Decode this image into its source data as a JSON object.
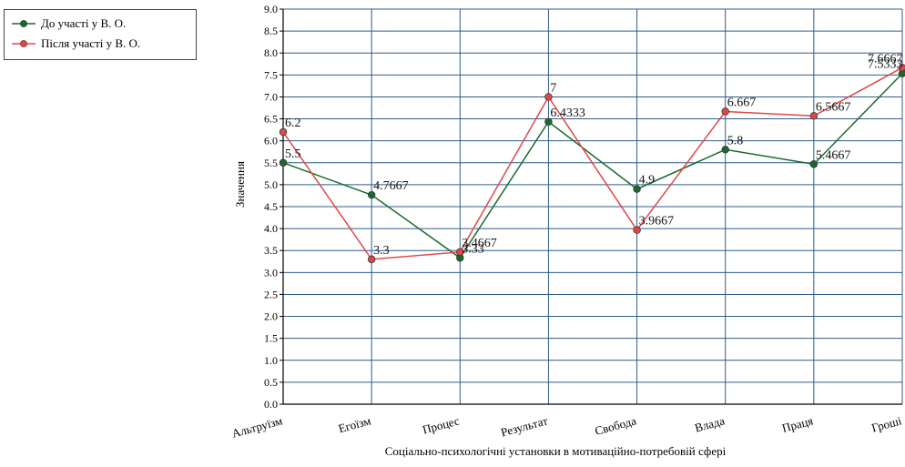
{
  "chart_data": {
    "type": "line",
    "categories": [
      "Альтруїзм",
      "Егоїзм",
      "Процес",
      "Результат",
      "Свобода",
      "Влада",
      "Праця",
      "Гроші"
    ],
    "series": [
      {
        "name": "До участі у В. О.",
        "color": "#1a6b2a",
        "values": [
          5.5,
          4.7667,
          3.3333,
          6.4333,
          4.9,
          5.8,
          5.4667,
          7.5333
        ],
        "labels": [
          "5.5",
          "4.7667",
          "3.33",
          "6.4333",
          "4.9",
          "5.8",
          "5.4667",
          "7.5333"
        ]
      },
      {
        "name": "Після участі у В. О.",
        "color": "#e04848",
        "values": [
          6.2,
          3.3,
          3.4667,
          7.0,
          3.9667,
          6.667,
          6.5667,
          7.6667
        ],
        "labels": [
          "6.2",
          "3.3",
          "3.4667",
          "7",
          "3.9667",
          "6.667",
          "6.5667",
          "7.6667"
        ]
      }
    ],
    "xlabel": "Соціально-психологічні установки в мотиваційно-потребовій сфері",
    "ylabel": "Значення",
    "ylim": [
      0,
      9
    ],
    "yticks": [
      "0.0",
      "0.5",
      "1.0",
      "1.5",
      "2.0",
      "2.5",
      "3.0",
      "3.5",
      "4.0",
      "4.5",
      "5.0",
      "5.5",
      "6.0",
      "6.5",
      "7.0",
      "7.5",
      "8.0",
      "8.5",
      "9.0"
    ],
    "grid": true,
    "legend_position": "top-left"
  }
}
